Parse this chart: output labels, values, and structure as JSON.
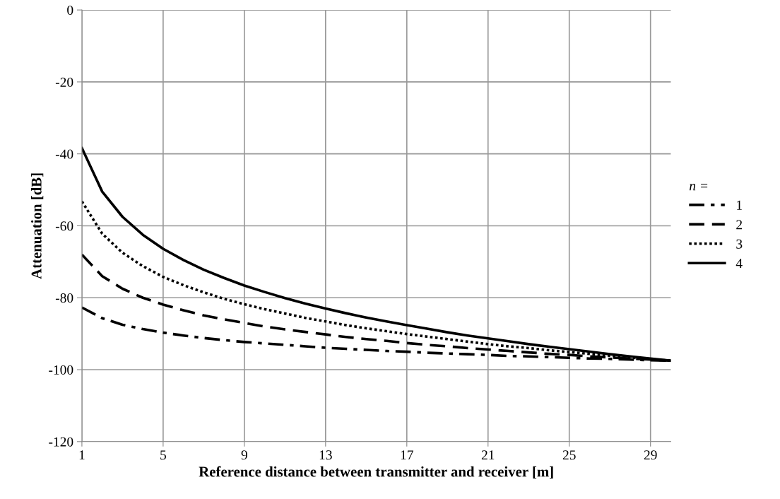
{
  "chart_data": {
    "type": "line",
    "xlabel": "Reference distance between transmitter and receiver [m]",
    "ylabel": "Attenuation [dB]",
    "legend_title": "n =",
    "x": [
      1,
      2,
      3,
      4,
      5,
      6,
      7,
      8,
      9,
      10,
      11,
      12,
      13,
      14,
      15,
      16,
      17,
      18,
      19,
      20,
      21,
      22,
      23,
      24,
      25,
      26,
      27,
      28,
      29,
      30
    ],
    "series": [
      {
        "name": "1",
        "color": "#000000",
        "line_style": "dashdot",
        "values": [
          -82.7,
          -85.7,
          -87.5,
          -88.7,
          -89.7,
          -90.5,
          -91.2,
          -91.8,
          -92.3,
          -92.7,
          -93.1,
          -93.5,
          -93.9,
          -94.2,
          -94.5,
          -94.8,
          -95.0,
          -95.3,
          -95.5,
          -95.7,
          -95.9,
          -96.2,
          -96.3,
          -96.5,
          -96.7,
          -96.9,
          -97.0,
          -97.2,
          -97.4,
          -97.5
        ]
      },
      {
        "name": "2",
        "color": "#000000",
        "line_style": "dashed",
        "values": [
          -68.0,
          -74.0,
          -77.5,
          -80.0,
          -81.9,
          -83.5,
          -84.9,
          -86.0,
          -87.0,
          -88.0,
          -88.8,
          -89.5,
          -90.2,
          -90.9,
          -91.5,
          -92.0,
          -92.6,
          -93.1,
          -93.5,
          -94.0,
          -94.4,
          -94.8,
          -95.2,
          -95.6,
          -95.9,
          -96.3,
          -96.6,
          -96.9,
          -97.2,
          -97.5
        ]
      },
      {
        "name": "3",
        "color": "#000000",
        "line_style": "dotted",
        "values": [
          -53.2,
          -62.2,
          -67.5,
          -71.2,
          -74.2,
          -76.5,
          -78.5,
          -80.3,
          -81.8,
          -83.2,
          -84.4,
          -85.6,
          -86.6,
          -87.6,
          -88.5,
          -89.3,
          -90.1,
          -90.8,
          -91.5,
          -92.2,
          -92.9,
          -93.5,
          -94.0,
          -94.6,
          -95.1,
          -95.6,
          -96.1,
          -96.6,
          -97.1,
          -97.5
        ]
      },
      {
        "name": "4",
        "color": "#000000",
        "line_style": "solid",
        "values": [
          -38.4,
          -50.5,
          -57.5,
          -62.5,
          -66.4,
          -69.5,
          -72.2,
          -74.5,
          -76.6,
          -78.4,
          -80.1,
          -81.6,
          -83.0,
          -84.3,
          -85.5,
          -86.6,
          -87.6,
          -88.6,
          -89.6,
          -90.5,
          -91.3,
          -92.1,
          -92.9,
          -93.6,
          -94.3,
          -95.0,
          -95.7,
          -96.3,
          -96.9,
          -97.5
        ]
      }
    ],
    "xlim": [
      1,
      30
    ],
    "xticks": [
      1,
      5,
      9,
      13,
      17,
      21,
      25,
      29
    ],
    "ylim": [
      -120,
      0
    ],
    "yticks": [
      -120,
      -100,
      -80,
      -60,
      -40,
      -20,
      0
    ],
    "grid": true,
    "legend": "right",
    "marker": "none"
  }
}
